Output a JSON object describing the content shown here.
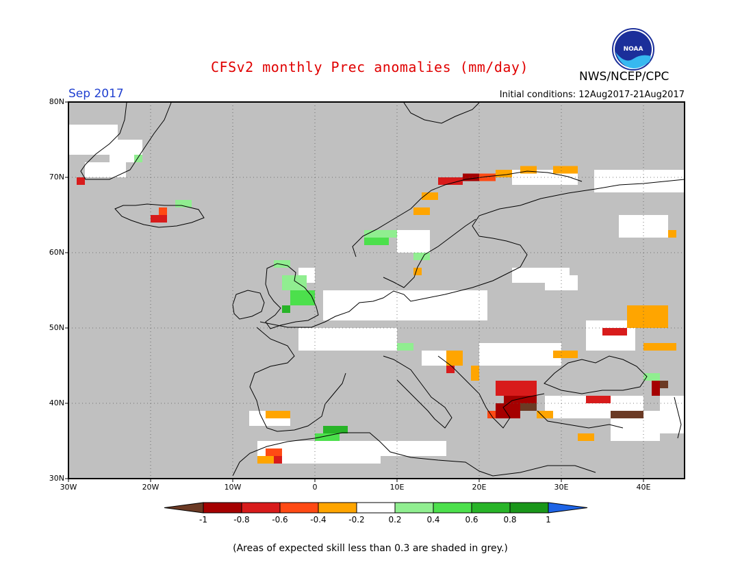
{
  "title": "CFSv2 monthly Prec anomalies (mm/day)",
  "agency": "NWS/NCEP/CPC",
  "logo_text": "NOAA",
  "month_label": "Sep 2017",
  "initial_conditions": "Initial conditions: 12Aug2017-21Aug2017",
  "footnote": "(Areas of expected skill less than 0.3 are shaded in grey.)",
  "map": {
    "lon_range": [
      -30,
      45
    ],
    "lat_range": [
      30,
      80
    ],
    "lat_labels": [
      "30N",
      "40N",
      "50N",
      "60N",
      "70N",
      "80N"
    ],
    "lon_labels": [
      "30W",
      "20W",
      "10W",
      "0",
      "10E",
      "20E",
      "30E",
      "40E"
    ],
    "grid": true,
    "background_color": "#c0c0c0"
  },
  "colorbar": {
    "labels": [
      "-1",
      "-0.8",
      "-0.6",
      "-0.4",
      "-0.2",
      "0.2",
      "0.4",
      "0.6",
      "0.8",
      "1"
    ],
    "colors": [
      "#6b3a24",
      "#a50000",
      "#d81b1b",
      "#ff4a14",
      "#ffa500",
      "#ffffff",
      "#90ee90",
      "#4ce04c",
      "#28b428",
      "#1a961a",
      "#1e64e6"
    ]
  },
  "anomaly_cells": [
    {
      "lon": -29,
      "lat": 69,
      "w": 1,
      "h": 1,
      "color": "#d81b1b"
    },
    {
      "lon": -20,
      "lat": 64,
      "w": 2,
      "h": 1,
      "color": "#d81b1b"
    },
    {
      "lon": -19,
      "lat": 65,
      "w": 1,
      "h": 1,
      "color": "#ff4a14"
    },
    {
      "lon": -17,
      "lat": 66,
      "w": 2,
      "h": 1,
      "color": "#90ee90"
    },
    {
      "lon": -22,
      "lat": 72,
      "w": 1,
      "h": 1,
      "color": "#90ee90"
    },
    {
      "lon": 15,
      "lat": 69,
      "w": 3,
      "h": 1,
      "color": "#d81b1b"
    },
    {
      "lon": 18,
      "lat": 69.5,
      "w": 3,
      "h": 1,
      "color": "#a50000"
    },
    {
      "lon": 20,
      "lat": 69.5,
      "w": 2,
      "h": 1,
      "color": "#ff4a14"
    },
    {
      "lon": 22,
      "lat": 70,
      "w": 2,
      "h": 1,
      "color": "#ffa500"
    },
    {
      "lon": 25,
      "lat": 70.5,
      "w": 2,
      "h": 1,
      "color": "#ffa500"
    },
    {
      "lon": 29,
      "lat": 70.5,
      "w": 3,
      "h": 1,
      "color": "#ffa500"
    },
    {
      "lon": 13,
      "lat": 67,
      "w": 2,
      "h": 1,
      "color": "#ffa500"
    },
    {
      "lon": 12,
      "lat": 65,
      "w": 2,
      "h": 1,
      "color": "#ffa500"
    },
    {
      "lon": 43,
      "lat": 62,
      "w": 1,
      "h": 1,
      "color": "#ffa500"
    },
    {
      "lon": 6,
      "lat": 61,
      "w": 3,
      "h": 2,
      "color": "#4ce04c"
    },
    {
      "lon": 6,
      "lat": 62,
      "w": 4,
      "h": 1,
      "color": "#90ee90"
    },
    {
      "lon": 12,
      "lat": 59,
      "w": 2,
      "h": 1,
      "color": "#90ee90"
    },
    {
      "lon": 12,
      "lat": 57,
      "w": 1,
      "h": 1,
      "color": "#ffa500"
    },
    {
      "lon": -5,
      "lat": 58,
      "w": 2,
      "h": 1,
      "color": "#90ee90"
    },
    {
      "lon": -4,
      "lat": 55,
      "w": 3,
      "h": 2,
      "color": "#90ee90"
    },
    {
      "lon": -3,
      "lat": 53,
      "w": 3,
      "h": 2,
      "color": "#4ce04c"
    },
    {
      "lon": -4,
      "lat": 52,
      "w": 1,
      "h": 1,
      "color": "#28b428"
    },
    {
      "lon": 16,
      "lat": 45,
      "w": 2,
      "h": 2,
      "color": "#ffa500"
    },
    {
      "lon": 16,
      "lat": 44,
      "w": 1,
      "h": 1,
      "color": "#d81b1b"
    },
    {
      "lon": 19,
      "lat": 43,
      "w": 1,
      "h": 2,
      "color": "#ffa500"
    },
    {
      "lon": 22,
      "lat": 41,
      "w": 5,
      "h": 2,
      "color": "#d81b1b"
    },
    {
      "lon": 23,
      "lat": 40,
      "w": 4,
      "h": 1,
      "color": "#a50000"
    },
    {
      "lon": 24,
      "lat": 39,
      "w": 3,
      "h": 1,
      "color": "#6b3a24"
    },
    {
      "lon": 22,
      "lat": 38,
      "w": 3,
      "h": 2,
      "color": "#a50000"
    },
    {
      "lon": 21,
      "lat": 38,
      "w": 1,
      "h": 1,
      "color": "#ff4a14"
    },
    {
      "lon": 27,
      "lat": 38,
      "w": 2,
      "h": 1,
      "color": "#ffa500"
    },
    {
      "lon": 33,
      "lat": 40,
      "w": 3,
      "h": 1,
      "color": "#d81b1b"
    },
    {
      "lon": 36,
      "lat": 38,
      "w": 4,
      "h": 1,
      "color": "#6b3a24"
    },
    {
      "lon": 38,
      "lat": 50,
      "w": 5,
      "h": 3,
      "color": "#ffa500"
    },
    {
      "lon": 35,
      "lat": 49,
      "w": 3,
      "h": 1,
      "color": "#d81b1b"
    },
    {
      "lon": 40,
      "lat": 47,
      "w": 4,
      "h": 1,
      "color": "#ffa500"
    },
    {
      "lon": 29,
      "lat": 46,
      "w": 3,
      "h": 1,
      "color": "#ffa500"
    },
    {
      "lon": 41,
      "lat": 41,
      "w": 1,
      "h": 2,
      "color": "#a50000"
    },
    {
      "lon": 42,
      "lat": 42,
      "w": 1,
      "h": 1,
      "color": "#6b3a24"
    },
    {
      "lon": 40,
      "lat": 43,
      "w": 2,
      "h": 1,
      "color": "#90ee90"
    },
    {
      "lon": 0,
      "lat": 35,
      "w": 3,
      "h": 1,
      "color": "#4ce04c"
    },
    {
      "lon": 1,
      "lat": 36,
      "w": 3,
      "h": 1,
      "color": "#28b428"
    },
    {
      "lon": -6,
      "lat": 38,
      "w": 3,
      "h": 1,
      "color": "#ffa500"
    },
    {
      "lon": -6,
      "lat": 33,
      "w": 2,
      "h": 1,
      "color": "#ff4a14"
    },
    {
      "lon": -7,
      "lat": 32,
      "w": 3,
      "h": 1,
      "color": "#ffa500"
    },
    {
      "lon": -5,
      "lat": 32,
      "w": 1,
      "h": 1,
      "color": "#d81b1b"
    },
    {
      "lon": 10,
      "lat": 47,
      "w": 2,
      "h": 1,
      "color": "#90ee90"
    },
    {
      "lon": 32,
      "lat": 35,
      "w": 2,
      "h": 1,
      "color": "#ffa500"
    }
  ],
  "white_cells": [
    {
      "lon": -30,
      "lat": 73,
      "w": 6,
      "h": 4
    },
    {
      "lon": -28,
      "lat": 70,
      "w": 5,
      "h": 2
    },
    {
      "lon": -25,
      "lat": 72,
      "w": 4,
      "h": 3
    },
    {
      "lon": 24,
      "lat": 69,
      "w": 8,
      "h": 2
    },
    {
      "lon": 34,
      "lat": 68,
      "w": 11,
      "h": 3
    },
    {
      "lon": 37,
      "lat": 62,
      "w": 6,
      "h": 3
    },
    {
      "lon": 10,
      "lat": 60,
      "w": 4,
      "h": 3
    },
    {
      "lon": 28,
      "lat": 55,
      "w": 4,
      "h": 2
    },
    {
      "lon": -2,
      "lat": 56,
      "w": 2,
      "h": 2
    },
    {
      "lon": 1,
      "lat": 51,
      "w": 20,
      "h": 4
    },
    {
      "lon": -2,
      "lat": 47,
      "w": 12,
      "h": 3
    },
    {
      "lon": 20,
      "lat": 45,
      "w": 10,
      "h": 3
    },
    {
      "lon": 33,
      "lat": 47,
      "w": 6,
      "h": 4
    },
    {
      "lon": 28,
      "lat": 38,
      "w": 12,
      "h": 3
    },
    {
      "lon": 36,
      "lat": 35,
      "w": 6,
      "h": 4
    },
    {
      "lon": -8,
      "lat": 37,
      "w": 5,
      "h": 2
    },
    {
      "lon": -7,
      "lat": 32,
      "w": 15,
      "h": 3
    },
    {
      "lon": 6,
      "lat": 33,
      "w": 10,
      "h": 2
    },
    {
      "lon": 42,
      "lat": 36,
      "w": 3,
      "h": 5
    },
    {
      "lon": 13,
      "lat": 45,
      "w": 3,
      "h": 2
    },
    {
      "lon": 24,
      "lat": 56,
      "w": 7,
      "h": 2
    }
  ]
}
